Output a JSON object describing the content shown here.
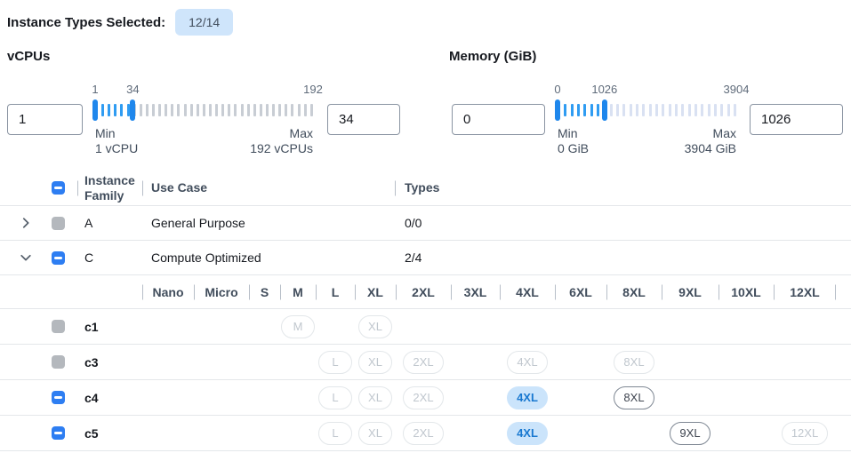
{
  "colors": {
    "accent_blue": "#2e7ef2",
    "handle_blue": "#1f87ec",
    "tick_active": "#2f9cf2",
    "tick_inactive": "#c8cdd4",
    "tick_inactive_light": "#d9e1f2",
    "selected_pill_bg": "#cbe4fb",
    "selected_pill_text": "#1878d0",
    "badge_bg": "#cfe5fb"
  },
  "header": {
    "label": "Instance Types Selected:",
    "badge": "12/14"
  },
  "filters": {
    "vcpus": {
      "title": "vCPUs",
      "min_input": "1",
      "max_input": "34",
      "range": [
        1,
        192
      ],
      "selected": [
        1,
        34
      ],
      "marks": [
        1,
        34,
        192
      ],
      "min_label": "Min",
      "min_caption": "1 vCPU",
      "max_label": "Max",
      "max_caption": "192 vCPUs"
    },
    "memory": {
      "title": "Memory (GiB)",
      "min_input": "0",
      "max_input": "1026",
      "range": [
        0,
        3904
      ],
      "selected": [
        0,
        1026
      ],
      "marks": [
        0,
        1026,
        3904
      ],
      "min_label": "Min",
      "min_caption": "0 GiB",
      "max_label": "Max",
      "max_caption": "3904 GiB"
    }
  },
  "table": {
    "columns": {
      "family": "Instance Family",
      "use_case": "Use Case",
      "types": "Types"
    },
    "header_checkbox": "indeterminate",
    "family_rows": [
      {
        "family": "A",
        "use_case": "General Purpose",
        "types": "0/0",
        "expanded": false,
        "checkbox": "disabled"
      },
      {
        "family": "C",
        "use_case": "Compute Optimized",
        "types": "2/4",
        "expanded": true,
        "checkbox": "indeterminate"
      }
    ],
    "size_columns": [
      "Nano",
      "Micro",
      "S",
      "M",
      "L",
      "XL",
      "2XL",
      "3XL",
      "4XL",
      "6XL",
      "8XL",
      "9XL",
      "10XL",
      "12XL"
    ],
    "instance_rows": [
      {
        "name": "c1",
        "checkbox": "disabled",
        "sizes": {
          "M": "disabled",
          "XL": "disabled"
        }
      },
      {
        "name": "c3",
        "checkbox": "disabled",
        "sizes": {
          "L": "disabled",
          "XL": "disabled",
          "2XL": "disabled",
          "4XL": "disabled",
          "8XL": "disabled"
        }
      },
      {
        "name": "c4",
        "checkbox": "indeterminate",
        "sizes": {
          "L": "disabled",
          "XL": "disabled",
          "2XL": "disabled",
          "4XL": "selected",
          "8XL": "enabled"
        }
      },
      {
        "name": "c5",
        "checkbox": "indeterminate",
        "sizes": {
          "L": "disabled",
          "XL": "disabled",
          "2XL": "disabled",
          "4XL": "selected",
          "9XL": "enabled",
          "12XL": "disabled"
        }
      }
    ]
  }
}
